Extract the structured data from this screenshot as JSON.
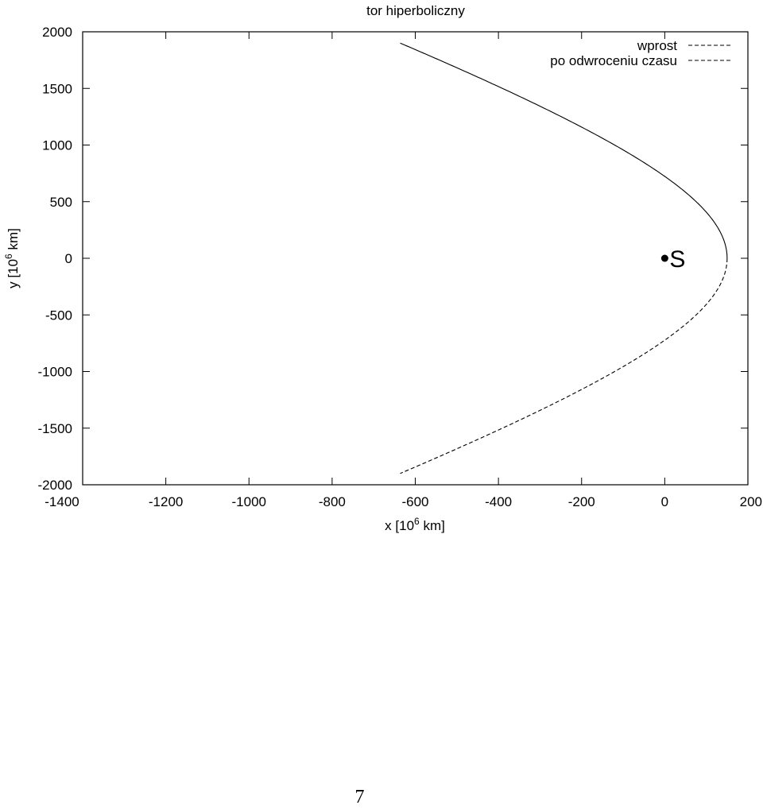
{
  "chart_data": {
    "type": "line",
    "title": "tor hiperboliczny",
    "xlabel": {
      "prefix": "x [10",
      "exp": "6",
      "suffix": " km]"
    },
    "ylabel": {
      "prefix": "y [10",
      "exp": "6",
      "suffix": " km]"
    },
    "xlim": [
      -1400,
      200
    ],
    "ylim": [
      -2000,
      2000
    ],
    "xticks": [
      "-1400",
      "-1200",
      "-1000",
      "-800",
      "-600",
      "-400",
      "-200",
      "0",
      "200"
    ],
    "yticks": [
      "2000",
      "1500",
      "1000",
      "500",
      "0",
      "-500",
      "-1000",
      "-1500",
      "-2000"
    ],
    "grid": false,
    "legend_position": "top-right",
    "series": [
      {
        "name": "wprost",
        "style": "solid",
        "hyperbola": {
          "vertex_x": 150,
          "a": 930,
          "b": 1225,
          "y_from": 1900,
          "y_to": 0
        }
      },
      {
        "name": "po odwroceniu czasu",
        "style": "dashed",
        "hyperbola": {
          "vertex_x": 150,
          "a": 930,
          "b": 1225,
          "y_from": 0,
          "y_to": -1900
        }
      }
    ],
    "annotations": [
      {
        "label": "S",
        "x": 0,
        "y": 0
      }
    ]
  },
  "page": {
    "number": "7"
  }
}
